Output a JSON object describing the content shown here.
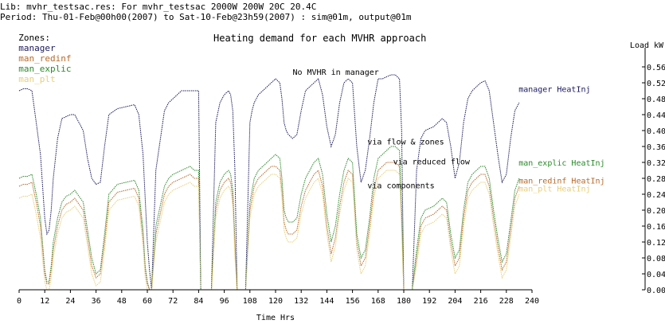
{
  "header": {
    "lib": "Lib: mvhr_testsac.res: For mvhr_testsac 2000W 200W 20C 20.4C",
    "period": "Period: Thu-01-Feb@00h00(2007) to Sat-10-Feb@23h59(2007) : sim@01m, output@01m",
    "zones_label": "Zones:",
    "zones": [
      {
        "name": "manager",
        "color": "#1a1a5e"
      },
      {
        "name": "man_redinf",
        "color": "#b86a2a"
      },
      {
        "name": "man_explic",
        "color": "#2a8a2a"
      },
      {
        "name": "man_plt",
        "color": "#e6cf7a"
      }
    ]
  },
  "chart_data": {
    "type": "line",
    "title": "Heating demand for each MVHR approach",
    "xlabel": "Time Hrs",
    "ylabel": "Load kW",
    "xlim": [
      0,
      240
    ],
    "ylim": [
      0,
      0.6
    ],
    "xticks": [
      0,
      12,
      24,
      36,
      48,
      60,
      72,
      84,
      96,
      108,
      120,
      132,
      144,
      156,
      168,
      180,
      192,
      204,
      216,
      228,
      240
    ],
    "yticks": [
      0.0,
      0.04,
      0.08,
      0.12,
      0.16,
      0.2,
      0.24,
      0.28,
      0.32,
      0.36,
      0.4,
      0.44,
      0.48,
      0.52,
      0.56
    ],
    "yaxis_side": "right",
    "grid": false,
    "annotations": [
      {
        "text": "No MVHR in manager",
        "x": 128,
        "y": 0.54
      },
      {
        "text": "via flow & zones",
        "x": 163,
        "y": 0.365
      },
      {
        "text": "via reduced flow",
        "x": 175,
        "y": 0.315
      },
      {
        "text": "via components",
        "x": 163,
        "y": 0.255
      }
    ],
    "series": [
      {
        "name": "manager HeatInj",
        "color": "#1a1a5e",
        "label_x": 233,
        "label_y": 0.505,
        "x": [
          0,
          2,
          4,
          6,
          8,
          10,
          12,
          13,
          14,
          15,
          16,
          18,
          20,
          22,
          24,
          26,
          30,
          32,
          34,
          36,
          38,
          40,
          42,
          46,
          50,
          54,
          56,
          58,
          59,
          60,
          61,
          62,
          64,
          68,
          70,
          72,
          76,
          80,
          82,
          84,
          85,
          86,
          88,
          89,
          90,
          92,
          94,
          96,
          98,
          99,
          100,
          101,
          102,
          104,
          106,
          108,
          109,
          110,
          112,
          114,
          116,
          118,
          120,
          122,
          123,
          124,
          125,
          126,
          128,
          130,
          132,
          134,
          136,
          138,
          140,
          142,
          144,
          146,
          148,
          150,
          152,
          154,
          156,
          158,
          160,
          162,
          164,
          166,
          168,
          170,
          172,
          174,
          176,
          178,
          179,
          180,
          182,
          184,
          186,
          188,
          190,
          192,
          194,
          196,
          198,
          200,
          202,
          204,
          206,
          208,
          210,
          212,
          214,
          216,
          218,
          220,
          222,
          224,
          226,
          228,
          230,
          232,
          234
        ],
        "y": [
          0.5,
          0.505,
          0.505,
          0.5,
          0.42,
          0.34,
          0.18,
          0.14,
          0.15,
          0.2,
          0.28,
          0.38,
          0.43,
          0.435,
          0.44,
          0.44,
          0.4,
          0.33,
          0.28,
          0.265,
          0.27,
          0.36,
          0.44,
          0.455,
          0.46,
          0.465,
          0.44,
          0.34,
          0.23,
          0.12,
          0.05,
          0.0,
          0.3,
          0.45,
          0.47,
          0.48,
          0.5,
          0.5,
          0.5,
          0.5,
          0.0,
          0.0,
          0.0,
          0.0,
          0.0,
          0.42,
          0.47,
          0.49,
          0.5,
          0.49,
          0.45,
          0.3,
          0.0,
          0.0,
          0.0,
          0.42,
          0.45,
          0.47,
          0.49,
          0.5,
          0.51,
          0.52,
          0.53,
          0.52,
          0.48,
          0.42,
          0.4,
          0.39,
          0.38,
          0.39,
          0.45,
          0.5,
          0.51,
          0.52,
          0.53,
          0.49,
          0.41,
          0.36,
          0.39,
          0.47,
          0.52,
          0.53,
          0.52,
          0.36,
          0.27,
          0.3,
          0.38,
          0.47,
          0.53,
          0.53,
          0.535,
          0.54,
          0.54,
          0.53,
          0.4,
          0.0,
          0.0,
          0.0,
          0.3,
          0.38,
          0.4,
          0.405,
          0.41,
          0.42,
          0.43,
          0.42,
          0.36,
          0.28,
          0.32,
          0.42,
          0.48,
          0.5,
          0.51,
          0.52,
          0.525,
          0.5,
          0.42,
          0.34,
          0.27,
          0.29,
          0.38,
          0.45,
          0.47
        ]
      },
      {
        "name": "man_explic HeatInj",
        "color": "#2a8a2a",
        "label_x": 233,
        "label_y": 0.32,
        "x": [
          0,
          2,
          4,
          6,
          8,
          10,
          12,
          13,
          14,
          15,
          16,
          18,
          20,
          22,
          24,
          26,
          30,
          32,
          34,
          36,
          38,
          40,
          42,
          46,
          50,
          54,
          56,
          58,
          59,
          60,
          61,
          62,
          64,
          68,
          70,
          72,
          76,
          80,
          82,
          84,
          85,
          86,
          88,
          89,
          90,
          92,
          94,
          96,
          98,
          99,
          100,
          101,
          102,
          104,
          106,
          108,
          109,
          110,
          112,
          114,
          116,
          118,
          120,
          122,
          123,
          124,
          125,
          126,
          128,
          130,
          132,
          134,
          136,
          138,
          140,
          142,
          144,
          146,
          148,
          150,
          152,
          154,
          156,
          158,
          160,
          162,
          164,
          166,
          168,
          170,
          172,
          174,
          176,
          178,
          179,
          180,
          182,
          184,
          186,
          188,
          190,
          192,
          194,
          196,
          198,
          200,
          202,
          204,
          206,
          208,
          210,
          212,
          214,
          216,
          218,
          220,
          222,
          224,
          226,
          228,
          230,
          232,
          234
        ],
        "y": [
          0.28,
          0.285,
          0.285,
          0.29,
          0.24,
          0.18,
          0.05,
          0.02,
          0.02,
          0.06,
          0.12,
          0.18,
          0.22,
          0.235,
          0.24,
          0.25,
          0.22,
          0.15,
          0.08,
          0.04,
          0.05,
          0.14,
          0.24,
          0.265,
          0.27,
          0.275,
          0.25,
          0.15,
          0.06,
          0.02,
          0.0,
          0.0,
          0.16,
          0.26,
          0.28,
          0.29,
          0.3,
          0.31,
          0.3,
          0.3,
          0.0,
          0.0,
          0.0,
          0.0,
          0.0,
          0.22,
          0.27,
          0.29,
          0.3,
          0.29,
          0.25,
          0.12,
          0.0,
          0.0,
          0.0,
          0.22,
          0.25,
          0.28,
          0.3,
          0.31,
          0.32,
          0.33,
          0.34,
          0.33,
          0.28,
          0.2,
          0.18,
          0.17,
          0.17,
          0.18,
          0.24,
          0.28,
          0.3,
          0.32,
          0.33,
          0.29,
          0.19,
          0.12,
          0.16,
          0.24,
          0.3,
          0.33,
          0.32,
          0.14,
          0.08,
          0.1,
          0.18,
          0.28,
          0.33,
          0.34,
          0.35,
          0.36,
          0.36,
          0.35,
          0.2,
          0.0,
          0.0,
          0.0,
          0.1,
          0.18,
          0.2,
          0.205,
          0.21,
          0.22,
          0.23,
          0.22,
          0.14,
          0.08,
          0.1,
          0.2,
          0.27,
          0.29,
          0.3,
          0.31,
          0.31,
          0.28,
          0.2,
          0.13,
          0.07,
          0.09,
          0.17,
          0.25,
          0.28
        ]
      },
      {
        "name": "man_redinf HeatInj",
        "color": "#b86a2a",
        "label_x": 233,
        "label_y": 0.275,
        "x": [
          0,
          2,
          4,
          6,
          8,
          10,
          12,
          13,
          14,
          15,
          16,
          18,
          20,
          22,
          24,
          26,
          30,
          32,
          34,
          36,
          38,
          40,
          42,
          46,
          50,
          54,
          56,
          58,
          59,
          60,
          61,
          62,
          64,
          68,
          70,
          72,
          76,
          80,
          82,
          84,
          85,
          86,
          88,
          89,
          90,
          92,
          94,
          96,
          98,
          99,
          100,
          101,
          102,
          104,
          106,
          108,
          109,
          110,
          112,
          114,
          116,
          118,
          120,
          122,
          123,
          124,
          125,
          126,
          128,
          130,
          132,
          134,
          136,
          138,
          140,
          142,
          144,
          146,
          148,
          150,
          152,
          154,
          156,
          158,
          160,
          162,
          164,
          166,
          168,
          170,
          172,
          174,
          176,
          178,
          179,
          180,
          182,
          184,
          186,
          188,
          190,
          192,
          194,
          196,
          198,
          200,
          202,
          204,
          206,
          208,
          210,
          212,
          214,
          216,
          218,
          220,
          222,
          224,
          226,
          228,
          230,
          232,
          234
        ],
        "y": [
          0.26,
          0.265,
          0.265,
          0.27,
          0.22,
          0.16,
          0.04,
          0.015,
          0.015,
          0.05,
          0.1,
          0.16,
          0.2,
          0.215,
          0.22,
          0.23,
          0.2,
          0.13,
          0.06,
          0.03,
          0.04,
          0.12,
          0.22,
          0.245,
          0.25,
          0.255,
          0.23,
          0.13,
          0.05,
          0.015,
          0.0,
          0.0,
          0.14,
          0.24,
          0.26,
          0.27,
          0.28,
          0.29,
          0.28,
          0.28,
          0.0,
          0.0,
          0.0,
          0.0,
          0.0,
          0.2,
          0.25,
          0.27,
          0.28,
          0.27,
          0.23,
          0.1,
          0.0,
          0.0,
          0.0,
          0.2,
          0.23,
          0.26,
          0.28,
          0.29,
          0.3,
          0.31,
          0.31,
          0.3,
          0.25,
          0.17,
          0.15,
          0.14,
          0.14,
          0.15,
          0.21,
          0.25,
          0.27,
          0.29,
          0.3,
          0.26,
          0.16,
          0.09,
          0.13,
          0.21,
          0.27,
          0.3,
          0.29,
          0.12,
          0.06,
          0.08,
          0.16,
          0.25,
          0.3,
          0.31,
          0.32,
          0.32,
          0.32,
          0.31,
          0.17,
          0.0,
          0.0,
          0.0,
          0.08,
          0.16,
          0.18,
          0.185,
          0.19,
          0.2,
          0.21,
          0.2,
          0.12,
          0.06,
          0.08,
          0.18,
          0.25,
          0.27,
          0.28,
          0.29,
          0.29,
          0.26,
          0.18,
          0.11,
          0.05,
          0.07,
          0.15,
          0.23,
          0.26
        ]
      },
      {
        "name": "man_plt HeatInj",
        "color": "#e6cf7a",
        "label_x": 233,
        "label_y": 0.255,
        "x": [
          0,
          2,
          4,
          6,
          8,
          10,
          12,
          13,
          14,
          15,
          16,
          18,
          20,
          22,
          24,
          26,
          30,
          32,
          34,
          36,
          38,
          40,
          42,
          46,
          50,
          54,
          56,
          58,
          59,
          60,
          61,
          62,
          64,
          68,
          70,
          72,
          76,
          80,
          82,
          84,
          85,
          86,
          88,
          89,
          90,
          92,
          94,
          96,
          98,
          99,
          100,
          101,
          102,
          104,
          106,
          108,
          109,
          110,
          112,
          114,
          116,
          118,
          120,
          122,
          123,
          124,
          125,
          126,
          128,
          130,
          132,
          134,
          136,
          138,
          140,
          142,
          144,
          146,
          148,
          150,
          152,
          154,
          156,
          158,
          160,
          162,
          164,
          166,
          168,
          170,
          172,
          174,
          176,
          178,
          179,
          180,
          182,
          184,
          186,
          188,
          190,
          192,
          194,
          196,
          198,
          200,
          202,
          204,
          206,
          208,
          210,
          212,
          214,
          216,
          218,
          220,
          222,
          224,
          226,
          228,
          230,
          232,
          234
        ],
        "y": [
          0.23,
          0.235,
          0.235,
          0.24,
          0.19,
          0.13,
          0.02,
          0.0,
          0.0,
          0.03,
          0.08,
          0.14,
          0.18,
          0.195,
          0.2,
          0.21,
          0.18,
          0.11,
          0.04,
          0.01,
          0.02,
          0.1,
          0.2,
          0.225,
          0.23,
          0.235,
          0.21,
          0.11,
          0.03,
          0.0,
          0.0,
          0.0,
          0.12,
          0.22,
          0.24,
          0.25,
          0.26,
          0.27,
          0.26,
          0.26,
          0.0,
          0.0,
          0.0,
          0.0,
          0.0,
          0.18,
          0.23,
          0.25,
          0.26,
          0.25,
          0.21,
          0.08,
          0.0,
          0.0,
          0.0,
          0.18,
          0.21,
          0.24,
          0.26,
          0.27,
          0.28,
          0.29,
          0.29,
          0.28,
          0.23,
          0.15,
          0.13,
          0.12,
          0.12,
          0.13,
          0.19,
          0.23,
          0.25,
          0.27,
          0.28,
          0.24,
          0.14,
          0.07,
          0.11,
          0.19,
          0.25,
          0.28,
          0.27,
          0.1,
          0.04,
          0.06,
          0.14,
          0.23,
          0.28,
          0.29,
          0.3,
          0.3,
          0.3,
          0.29,
          0.15,
          0.0,
          0.0,
          0.0,
          0.06,
          0.14,
          0.16,
          0.165,
          0.17,
          0.18,
          0.19,
          0.18,
          0.1,
          0.04,
          0.06,
          0.16,
          0.23,
          0.25,
          0.26,
          0.27,
          0.27,
          0.24,
          0.16,
          0.09,
          0.03,
          0.05,
          0.13,
          0.21,
          0.24
        ]
      }
    ]
  }
}
